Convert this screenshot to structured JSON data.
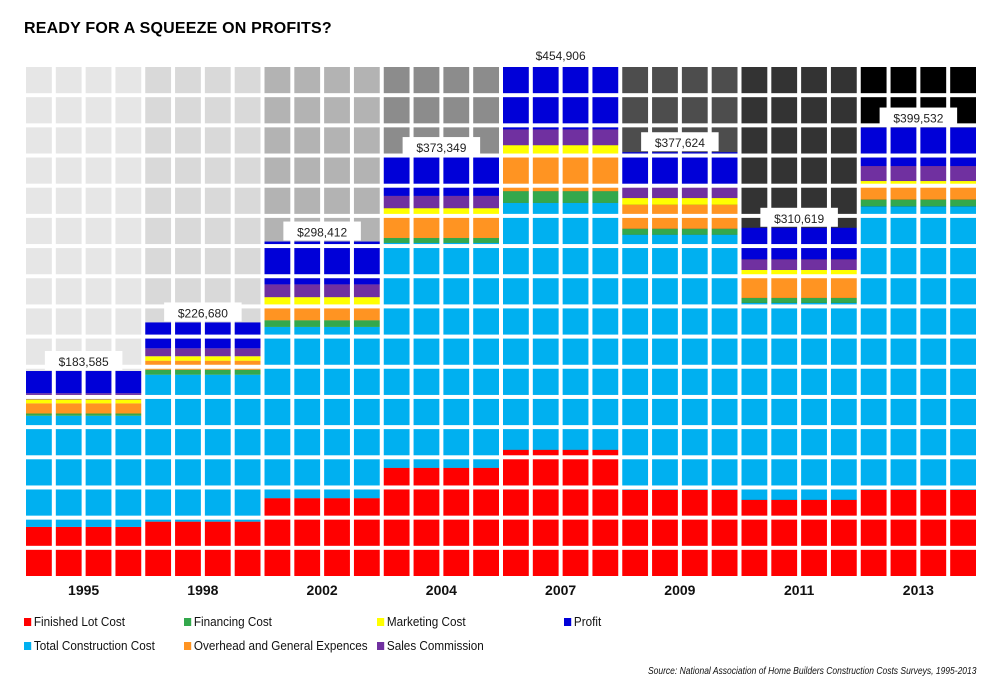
{
  "title": "READY FOR A SQUEEZE ON PROFITS?",
  "source": "Source: National Association of Home Builders Construction Costs Surveys, 1995-2013",
  "chart_data": {
    "type": "bar",
    "stacked": true,
    "style": "waffle",
    "title": "READY FOR A SQUEEZE ON PROFITS?",
    "xlabel": "",
    "ylabel": "",
    "ylim": [
      0,
      455000
    ],
    "grid": false,
    "legend_position": "bottom",
    "categories": [
      "1995",
      "1998",
      "2002",
      "2004",
      "2007",
      "2009",
      "2011",
      "2013"
    ],
    "totals": [
      183585,
      226680,
      298412,
      373349,
      454906,
      377624,
      310619,
      399532
    ],
    "total_labels": [
      "$183,585",
      "$226,680",
      "$298,412",
      "$373,349",
      "$454,906",
      "$377,624",
      "$310,619",
      "$399,532"
    ],
    "background_colors": [
      "#e6e6e6",
      "#d9d9d9",
      "#b3b3b3",
      "#8c8c8c",
      "#666666",
      "#4d4d4d",
      "#333333",
      "#000000"
    ],
    "series": [
      {
        "name": "Finished Lot Cost",
        "color": "#ff0000",
        "values": [
          45300,
          50000,
          70800,
          97700,
          113700,
          78100,
          69300,
          78100
        ]
      },
      {
        "name": "Total Construction Cost",
        "color": "#00b0f0",
        "values": [
          98600,
          130300,
          151900,
          199500,
          219000,
          226400,
          174700,
          251600
        ]
      },
      {
        "name": "Financing Cost",
        "color": "#33a84c",
        "values": [
          2000,
          4400,
          5900,
          4400,
          10400,
          5300,
          4400,
          5900
        ]
      },
      {
        "name": "Overhead and General Expences",
        "color": "#ff9422",
        "values": [
          9000,
          8000,
          13000,
          20400,
          31000,
          21300,
          20400,
          13000
        ]
      },
      {
        "name": "Marketing Cost",
        "color": "#ffff00",
        "values": [
          3500,
          4000,
          7500,
          6000,
          9800,
          5900,
          4400,
          3500
        ]
      },
      {
        "name": "Sales Commission",
        "color": "#7030a0",
        "values": [
          5500,
          7000,
          11300,
          10900,
          14000,
          10400,
          9500,
          13300
        ]
      },
      {
        "name": "Profit",
        "color": "#0000d8",
        "values": [
          19685,
          22980,
          38012,
          34449,
          57006,
          30224,
          27919,
          34132
        ]
      }
    ]
  },
  "legend": [
    {
      "label": "Finished Lot Cost",
      "color": "#ff0000"
    },
    {
      "label": "Financing Cost",
      "color": "#33a84c"
    },
    {
      "label": "Marketing Cost",
      "color": "#ffff00"
    },
    {
      "label": "Profit",
      "color": "#0000d8"
    },
    {
      "label": "Total Construction Cost",
      "color": "#00b0f0"
    },
    {
      "label": "Overhead and General Expences",
      "color": "#ff9422"
    },
    {
      "label": "Sales Commission",
      "color": "#7030a0"
    }
  ]
}
